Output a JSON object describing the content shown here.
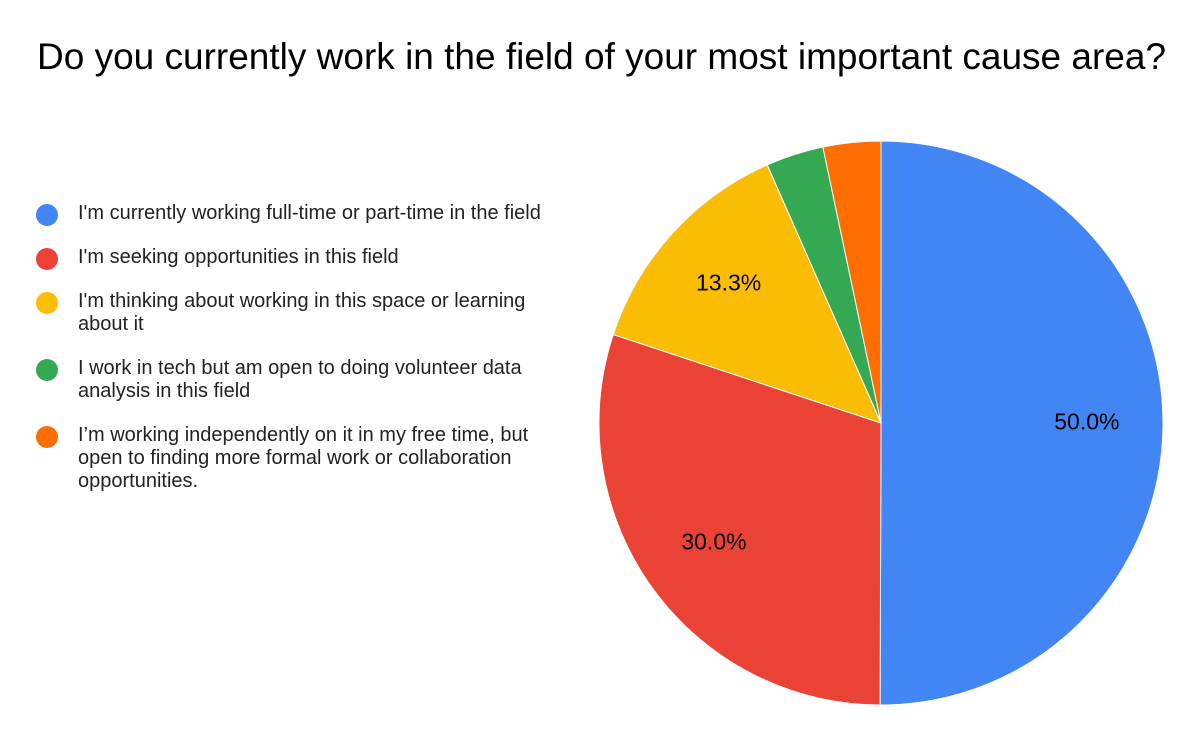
{
  "chart_data": {
    "type": "pie",
    "title": "Do you currently work in the field of your most important cause area?",
    "categories": [
      "I'm currently working full-time or part-time in the field",
      "I'm seeking opportunities in this field",
      "I'm thinking about working in this space or learning about it",
      "I work in tech but am open to doing volunteer data analysis in this field",
      "I’m working independently on it in my free time, but open to finding more formal work or collaboration opportunities."
    ],
    "values": [
      50.0,
      30.0,
      13.3,
      3.3,
      3.3
    ],
    "value_labels": [
      "50.0%",
      "30.0%",
      "13.3%",
      null,
      null
    ],
    "colors": [
      "#4285f4",
      "#ea4335",
      "#fbbc04",
      "#34a853",
      "#ff6d01"
    ],
    "legend": "left"
  }
}
